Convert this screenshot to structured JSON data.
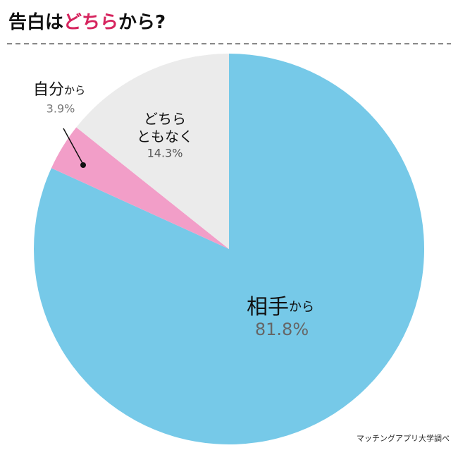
{
  "chart_data": {
    "type": "pie",
    "title": [
      "告白は",
      "どちら",
      "から?"
    ],
    "categories": [
      [
        "相手",
        "から"
      ],
      [
        "自分",
        "から"
      ],
      [
        "どちら",
        "ともなく"
      ]
    ],
    "values": [
      81.8,
      3.9,
      14.3
    ],
    "value_labels": [
      "81.8%",
      "3.9%",
      "14.3%"
    ],
    "colors": [
      "#76c9e8",
      "#f29ec8",
      "#ebebeb"
    ],
    "source": "マッチングアプリ大学調べ"
  }
}
